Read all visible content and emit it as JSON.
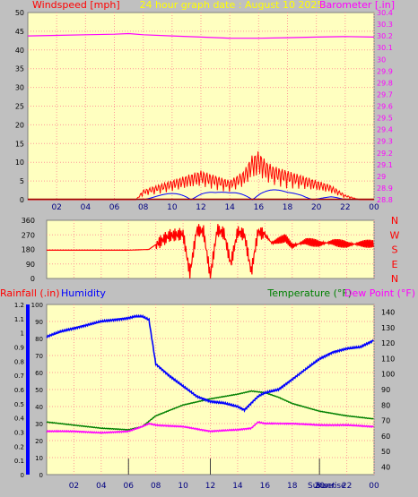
{
  "header": {
    "title": "24 hour graph date : August 10 2025"
  },
  "colors": {
    "plot_bg": "#ffffc0",
    "grid": "#ff9999",
    "wind": "#ff0000",
    "gust_dark": "#a00000",
    "gust_blue": "#0000ff",
    "gust_green": "#008000",
    "barometer": "#ff00ff",
    "humidity": "#0000ff",
    "temperature": "#008000",
    "dewpoint": "#ff00ff",
    "rain": "#0000ff",
    "hour_axis": "#000080"
  },
  "chart_data": [
    {
      "id": "wind-barometer",
      "type": "line",
      "left_axis_label": "Windspeed [mph]",
      "right_axis_label": "Barometer [.in]",
      "left_ylim": [
        0,
        50
      ],
      "left_ticks": [
        "0",
        "5",
        "10",
        "15",
        "20",
        "25",
        "30",
        "35",
        "40",
        "45",
        "50"
      ],
      "right_ylim": [
        28.8,
        30.4
      ],
      "right_ticks": [
        "28.8",
        "28.9",
        "29",
        "29.1",
        "29.2",
        "29.3",
        "29.4",
        "29.5",
        "29.6",
        "29.7",
        "29.8",
        "29.9",
        "30",
        "30.1",
        "30.2",
        "30.3",
        "30.4"
      ],
      "x_ticks": [
        "02",
        "04",
        "06",
        "08",
        "10",
        "12",
        "14",
        "16",
        "18",
        "20",
        "22",
        "00"
      ],
      "series": [
        {
          "id": "barometer",
          "axis": "right",
          "x": [
            0,
            2,
            4,
            6,
            7,
            8,
            10,
            12,
            14,
            16,
            18,
            20,
            22,
            24
          ],
          "values": [
            30.2,
            30.205,
            30.21,
            30.215,
            30.22,
            30.21,
            30.2,
            30.19,
            30.18,
            30.18,
            30.185,
            30.19,
            30.195,
            30.19
          ]
        },
        {
          "id": "wind",
          "axis": "left",
          "x": [
            0,
            7.5,
            8,
            9,
            10,
            11,
            12,
            13,
            14,
            15,
            15.5,
            16,
            16.5,
            17,
            18,
            19,
            20,
            21,
            22,
            23,
            24
          ],
          "values": [
            0,
            0,
            2,
            3,
            4,
            5,
            6,
            5,
            4,
            6,
            9,
            10,
            8,
            7,
            6,
            5,
            4,
            3,
            1,
            0,
            0
          ]
        },
        {
          "id": "gust",
          "axis": "left",
          "x": [
            8,
            9,
            10,
            11,
            12,
            13,
            14,
            15,
            16,
            17,
            18,
            19,
            20,
            21,
            22
          ],
          "values": [
            0,
            1,
            2,
            3,
            3,
            2,
            2,
            3,
            4,
            3,
            2,
            2,
            1,
            1,
            0
          ]
        }
      ]
    },
    {
      "id": "wind-direction",
      "type": "line",
      "ylim": [
        0,
        360
      ],
      "y_ticks": [
        "0",
        "90",
        "180",
        "270",
        "360"
      ],
      "compass": [
        "N",
        "W",
        "S",
        "E",
        "N"
      ],
      "series": [
        {
          "id": "direction",
          "x": [
            0,
            3,
            6,
            7.5,
            8,
            9,
            9.5,
            10,
            10.5,
            11,
            11.5,
            12,
            12.5,
            13,
            13.5,
            14,
            14.5,
            15,
            15.5,
            16,
            16.5,
            17,
            17.5,
            18,
            19,
            20,
            21,
            22,
            23,
            24
          ],
          "values": [
            175,
            175,
            175,
            180,
            210,
            265,
            270,
            275,
            30,
            300,
            290,
            15,
            300,
            280,
            90,
            290,
            270,
            40,
            290,
            270,
            220,
            235,
            250,
            200,
            230,
            215,
            225,
            210,
            215,
            215
          ]
        }
      ]
    },
    {
      "id": "rain-humidity-temp",
      "type": "line",
      "left_axis_label": "Rainfall (.in)",
      "left2_axis_label": "Humidity",
      "right_axis_label": "Temperature (°F)",
      "right2_axis_label": "Dew Point (°F)",
      "rain_ticks": [
        "0",
        "0.1",
        "0.2",
        "0.3",
        "0.4",
        "0.5",
        "0.6",
        "0.7",
        "0.8",
        "0.9",
        "1",
        "1.1",
        "1.2"
      ],
      "humidity_ticks": [
        "0",
        "10",
        "20",
        "30",
        "40",
        "50",
        "60",
        "70",
        "80",
        "90",
        "100"
      ],
      "temp_ylim": [
        35,
        145
      ],
      "temp_ticks": [
        "40",
        "50",
        "60",
        "70",
        "80",
        "90",
        "100",
        "110",
        "120",
        "130",
        "140"
      ],
      "x_ticks": [
        "02",
        "04",
        "06",
        "08",
        "10",
        "12",
        "14",
        "16",
        "18",
        "20",
        "22",
        "00"
      ],
      "sun_labels": [
        "Sunset",
        "Sunrise"
      ],
      "series": [
        {
          "id": "humidity",
          "x": [
            0,
            1,
            2,
            3,
            4,
            5,
            6,
            6.5,
            7,
            7.5,
            8,
            9,
            10,
            11,
            12,
            13,
            14,
            14.5,
            15,
            15.5,
            16,
            17,
            18,
            19,
            20,
            21,
            22,
            23,
            24
          ],
          "values": [
            81,
            84,
            86,
            88,
            90,
            91,
            92,
            93,
            93,
            91,
            65,
            58,
            52,
            46,
            43,
            42,
            40,
            38,
            42,
            46,
            48,
            50,
            56,
            62,
            68,
            72,
            74,
            75,
            79
          ]
        },
        {
          "id": "temperature",
          "x": [
            0,
            2,
            4,
            6,
            7,
            8,
            10,
            12,
            14,
            15,
            16,
            17,
            18,
            20,
            22,
            24
          ],
          "values": [
            69,
            67,
            65,
            64,
            66,
            73,
            80,
            84,
            87,
            89,
            88,
            85,
            81,
            76,
            73,
            71
          ]
        },
        {
          "id": "dewpoint",
          "x": [
            0,
            2,
            4,
            6,
            7,
            7.5,
            8,
            10,
            12,
            14,
            15,
            15.5,
            16,
            18,
            20,
            22,
            24
          ],
          "values": [
            63,
            63,
            62,
            63,
            66,
            68,
            67,
            66,
            63,
            64,
            65,
            69,
            68,
            68,
            67,
            67,
            66
          ]
        }
      ]
    }
  ]
}
